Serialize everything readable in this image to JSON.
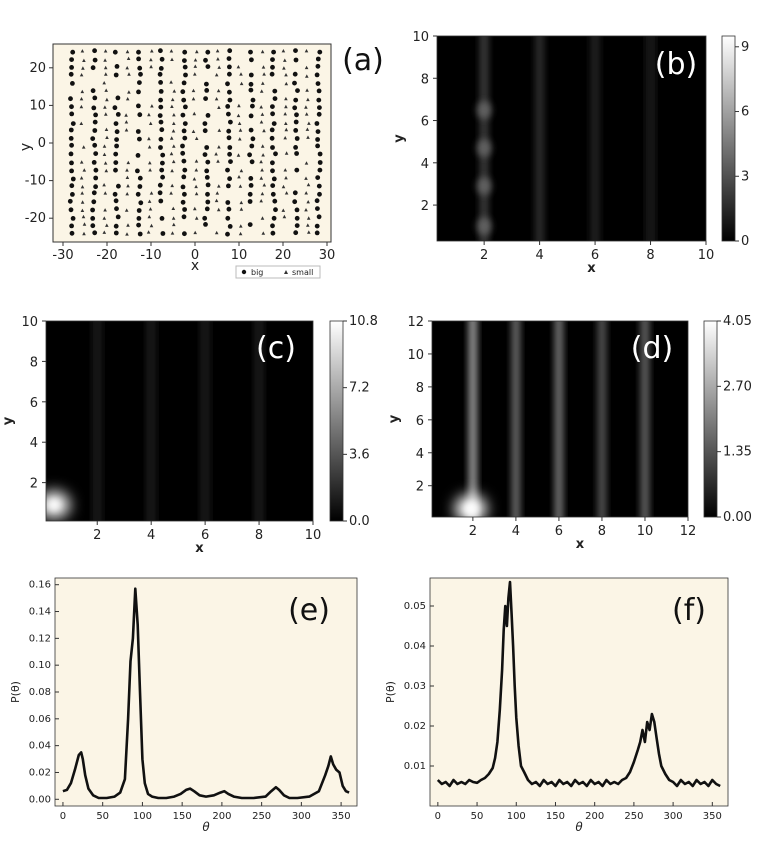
{
  "chart_data": [
    {
      "id": "a",
      "type": "scatter",
      "panel_label": "(a)",
      "xlabel": "x",
      "ylabel": "y",
      "xlim": [
        -30,
        30
      ],
      "ylim": [
        -25,
        25
      ],
      "xticks": [
        -30,
        -20,
        -10,
        0,
        10,
        20,
        30
      ],
      "yticks": [
        -20,
        -10,
        0,
        10,
        20
      ],
      "background": "#fbf5e6",
      "legend": {
        "placement": "below-right",
        "entries": [
          "big",
          "small"
        ]
      },
      "series": [
        {
          "name": "big",
          "marker": "circle",
          "points": []
        },
        {
          "name": "small",
          "marker": "triangle",
          "points": []
        }
      ]
    },
    {
      "id": "b",
      "type": "heatmap",
      "panel_label": "(b)",
      "xlabel": "x",
      "ylabel": "y",
      "xlim": [
        0.3,
        10
      ],
      "ylim": [
        0.3,
        10
      ],
      "xticks": [
        2,
        4,
        6,
        8,
        10
      ],
      "yticks": [
        2,
        4,
        6,
        8,
        10
      ],
      "colorbar": {
        "min": 0,
        "max": 9.5,
        "ticks": [
          0,
          3,
          6,
          9
        ]
      },
      "stripes": [
        {
          "x": 2,
          "intensity": 0.22,
          "blobs": [
            1,
            2.9,
            4.7,
            6.5
          ]
        },
        {
          "x": 4,
          "intensity": 0.16
        },
        {
          "x": 6,
          "intensity": 0.14
        },
        {
          "x": 8,
          "intensity": 0.1
        }
      ]
    },
    {
      "id": "c",
      "type": "heatmap",
      "panel_label": "(c)",
      "xlabel": "x",
      "ylabel": "y",
      "xlim": [
        0.1,
        10
      ],
      "ylim": [
        0.1,
        10
      ],
      "xticks": [
        2,
        4,
        6,
        8,
        10
      ],
      "yticks": [
        2,
        4,
        6,
        8,
        10
      ],
      "colorbar": {
        "min": 0,
        "max": 10.8,
        "ticks": [
          "0.0",
          "3.6",
          "7.2",
          "10.8"
        ]
      },
      "stripes": [
        {
          "x": 2,
          "intensity": 0.1
        },
        {
          "x": 4,
          "intensity": 0.12
        },
        {
          "x": 6,
          "intensity": 0.1
        },
        {
          "x": 8,
          "intensity": 0.1
        }
      ],
      "corner_glow": {
        "x": 0.4,
        "y": 0.9,
        "intensity": 0.95
      }
    },
    {
      "id": "d",
      "type": "heatmap",
      "panel_label": "(d)",
      "xlabel": "x",
      "ylabel": "y",
      "xlim": [
        0.1,
        12
      ],
      "ylim": [
        0.1,
        12
      ],
      "xticks": [
        2,
        4,
        6,
        8,
        10,
        12
      ],
      "yticks": [
        2,
        4,
        6,
        8,
        10,
        12
      ],
      "colorbar": {
        "min": 0,
        "max": 4.05,
        "ticks": [
          "0.00",
          "1.35",
          "2.70",
          "4.05"
        ]
      },
      "stripes": [
        {
          "x": 2,
          "intensity": 0.55
        },
        {
          "x": 4,
          "intensity": 0.38
        },
        {
          "x": 6,
          "intensity": 0.42
        },
        {
          "x": 8,
          "intensity": 0.3
        },
        {
          "x": 10,
          "intensity": 0.36
        }
      ],
      "corner_glow": {
        "x": 1.9,
        "y": 0.6,
        "intensity": 1.0
      }
    },
    {
      "id": "e",
      "type": "line",
      "panel_label": "(e)",
      "xlabel": "θ",
      "ylabel": "P(θ)",
      "xlim": [
        -10,
        370
      ],
      "ylim": [
        -0.005,
        0.165
      ],
      "xticks": [
        0,
        50,
        100,
        150,
        200,
        250,
        300,
        350
      ],
      "yticks": [
        "0.00",
        "0.02",
        "0.04",
        "0.06",
        "0.08",
        "0.10",
        "0.12",
        "0.14",
        "0.16"
      ],
      "background": "#fbf5e6",
      "series": [
        {
          "x": [
            0,
            5,
            10,
            15,
            20,
            23,
            25,
            28,
            32,
            38,
            45,
            55,
            65,
            72,
            78,
            82,
            85,
            88,
            91,
            94,
            97,
            100,
            103,
            107,
            112,
            120,
            130,
            140,
            148,
            155,
            160,
            165,
            172,
            180,
            190,
            198,
            203,
            208,
            215,
            225,
            240,
            255,
            262,
            268,
            272,
            278,
            285,
            295,
            310,
            322,
            330,
            334,
            337,
            340,
            344,
            348,
            352,
            356,
            360
          ],
          "y": [
            0.006,
            0.007,
            0.012,
            0.022,
            0.033,
            0.035,
            0.03,
            0.018,
            0.008,
            0.003,
            0.001,
            0.001,
            0.002,
            0.005,
            0.015,
            0.06,
            0.103,
            0.12,
            0.157,
            0.13,
            0.08,
            0.03,
            0.012,
            0.004,
            0.002,
            0.001,
            0.001,
            0.002,
            0.004,
            0.007,
            0.008,
            0.006,
            0.003,
            0.002,
            0.003,
            0.005,
            0.006,
            0.004,
            0.002,
            0.001,
            0.001,
            0.002,
            0.006,
            0.009,
            0.007,
            0.003,
            0.001,
            0.001,
            0.002,
            0.006,
            0.018,
            0.025,
            0.032,
            0.026,
            0.022,
            0.02,
            0.01,
            0.006,
            0.005
          ]
        }
      ]
    },
    {
      "id": "f",
      "type": "line",
      "panel_label": "(f)",
      "xlabel": "θ",
      "ylabel": "P(θ)",
      "xlim": [
        -10,
        370
      ],
      "ylim": [
        0.0,
        0.057
      ],
      "xticks": [
        0,
        50,
        100,
        150,
        200,
        250,
        300,
        350
      ],
      "yticks": [
        "0.01",
        "0.02",
        "0.03",
        "0.04",
        "0.05"
      ],
      "background": "#fbf5e6",
      "series": [
        {
          "x": [
            0,
            5,
            10,
            15,
            20,
            25,
            30,
            35,
            40,
            45,
            50,
            55,
            60,
            65,
            70,
            73,
            76,
            79,
            82,
            84,
            86,
            88,
            90,
            92,
            94,
            96,
            98,
            100,
            103,
            106,
            110,
            115,
            120,
            125,
            130,
            135,
            140,
            145,
            150,
            155,
            160,
            165,
            170,
            175,
            180,
            185,
            190,
            195,
            200,
            205,
            210,
            215,
            220,
            225,
            230,
            235,
            240,
            245,
            250,
            255,
            258,
            261,
            264,
            267,
            270,
            273,
            276,
            279,
            282,
            285,
            290,
            295,
            300,
            305,
            310,
            315,
            320,
            325,
            330,
            335,
            340,
            345,
            350,
            355,
            360
          ],
          "y": [
            0.0065,
            0.0055,
            0.006,
            0.005,
            0.0065,
            0.0055,
            0.006,
            0.0055,
            0.0065,
            0.006,
            0.0058,
            0.0065,
            0.007,
            0.008,
            0.0095,
            0.012,
            0.016,
            0.024,
            0.034,
            0.044,
            0.05,
            0.045,
            0.052,
            0.056,
            0.048,
            0.04,
            0.03,
            0.022,
            0.015,
            0.01,
            0.0085,
            0.0065,
            0.0055,
            0.006,
            0.005,
            0.0065,
            0.0055,
            0.006,
            0.005,
            0.0065,
            0.0055,
            0.006,
            0.005,
            0.0065,
            0.0055,
            0.006,
            0.005,
            0.0065,
            0.0055,
            0.006,
            0.005,
            0.0065,
            0.0055,
            0.006,
            0.0055,
            0.0065,
            0.007,
            0.0085,
            0.011,
            0.014,
            0.016,
            0.019,
            0.016,
            0.021,
            0.019,
            0.023,
            0.021,
            0.017,
            0.013,
            0.01,
            0.008,
            0.0065,
            0.006,
            0.005,
            0.0065,
            0.0055,
            0.006,
            0.005,
            0.0065,
            0.0055,
            0.006,
            0.005,
            0.0065,
            0.0055,
            0.005
          ]
        }
      ]
    }
  ]
}
